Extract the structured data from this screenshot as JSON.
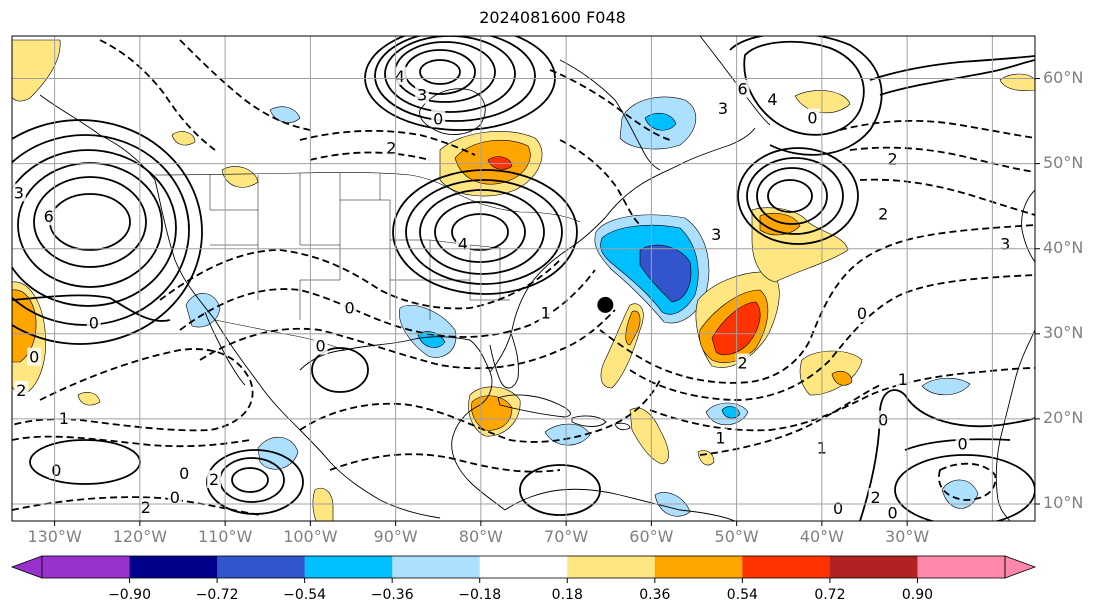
{
  "title": "2024081600 F048",
  "map": {
    "lon_range": [
      -135,
      -15
    ],
    "lat_range": [
      8,
      65
    ],
    "lon_labels": [
      "130°W",
      "120°W",
      "110°W",
      "100°W",
      "90°W",
      "80°W",
      "70°W",
      "60°W",
      "50°W",
      "40°W",
      "30°W"
    ],
    "lat_labels": [
      "60°N",
      "50°N",
      "40°N",
      "30°N",
      "20°N",
      "10°N"
    ],
    "grid": true,
    "marker": {
      "label": "storm-center",
      "lon": -65.4,
      "lat": 33.4
    }
  },
  "colorbar": {
    "ticks": [
      "−0.90",
      "−0.72",
      "−0.54",
      "−0.36",
      "−0.18",
      "0.18",
      "0.36",
      "0.54",
      "0.72",
      "0.90"
    ],
    "colors": [
      "#9932CC",
      "#00008B",
      "#3355CC",
      "#00BFFF",
      "#ADDFFF",
      "#FFFFFF",
      "#FFE680",
      "#FFA500",
      "#FF3300",
      "#B22222",
      "#FF88AA"
    ],
    "extend": "both"
  },
  "contour_labels": [
    {
      "text": "4",
      "lon": -89.5,
      "lat": 60.2
    },
    {
      "text": "3",
      "lon": -86.9,
      "lat": 58.0
    },
    {
      "text": "0",
      "lon": -85.0,
      "lat": 55.2
    },
    {
      "text": "6",
      "lon": -130.7,
      "lat": 43.7
    },
    {
      "text": "3",
      "lon": -134.2,
      "lat": 46.5
    },
    {
      "text": "0",
      "lon": -125.4,
      "lat": 31.2
    },
    {
      "text": "0",
      "lon": -132.4,
      "lat": 27.2
    },
    {
      "text": "2",
      "lon": -133.9,
      "lat": 23.3
    },
    {
      "text": "1",
      "lon": -128.9,
      "lat": 20.0
    },
    {
      "text": "0",
      "lon": -129.8,
      "lat": 13.9
    },
    {
      "text": "2",
      "lon": -119.3,
      "lat": 9.5
    },
    {
      "text": "0",
      "lon": -115.9,
      "lat": 10.7
    },
    {
      "text": "0",
      "lon": -114.8,
      "lat": 13.5
    },
    {
      "text": "2",
      "lon": -111.3,
      "lat": 12.8
    },
    {
      "text": "0",
      "lon": -98.8,
      "lat": 28.5
    },
    {
      "text": "0",
      "lon": -95.4,
      "lat": 33.0
    },
    {
      "text": "4",
      "lon": -82.1,
      "lat": 40.5
    },
    {
      "text": "2",
      "lon": -90.5,
      "lat": 51.8
    },
    {
      "text": "1",
      "lon": -72.4,
      "lat": 32.4
    },
    {
      "text": "6",
      "lon": -49.3,
      "lat": 58.7
    },
    {
      "text": "4",
      "lon": -45.8,
      "lat": 57.5
    },
    {
      "text": "3",
      "lon": -51.6,
      "lat": 56.4
    },
    {
      "text": "0",
      "lon": -41.1,
      "lat": 55.3
    },
    {
      "text": "2",
      "lon": -31.7,
      "lat": 50.5
    },
    {
      "text": "2",
      "lon": -32.8,
      "lat": 44.0
    },
    {
      "text": "3",
      "lon": -52.4,
      "lat": 41.6
    },
    {
      "text": "3",
      "lon": -18.5,
      "lat": 40.5
    },
    {
      "text": "0",
      "lon": -35.3,
      "lat": 32.3
    },
    {
      "text": "1",
      "lon": -30.5,
      "lat": 24.6
    },
    {
      "text": "0",
      "lon": -32.8,
      "lat": 19.8
    },
    {
      "text": "1",
      "lon": -51.9,
      "lat": 17.7
    },
    {
      "text": "2",
      "lon": -49.3,
      "lat": 26.5
    },
    {
      "text": "1",
      "lon": -40.0,
      "lat": 16.5
    },
    {
      "text": "2",
      "lon": -33.7,
      "lat": 10.7
    },
    {
      "text": "0",
      "lon": -38.1,
      "lat": 9.4
    },
    {
      "text": "0",
      "lon": -31.7,
      "lat": 8.9
    },
    {
      "text": "0",
      "lon": -23.5,
      "lat": 17.0
    }
  ]
}
